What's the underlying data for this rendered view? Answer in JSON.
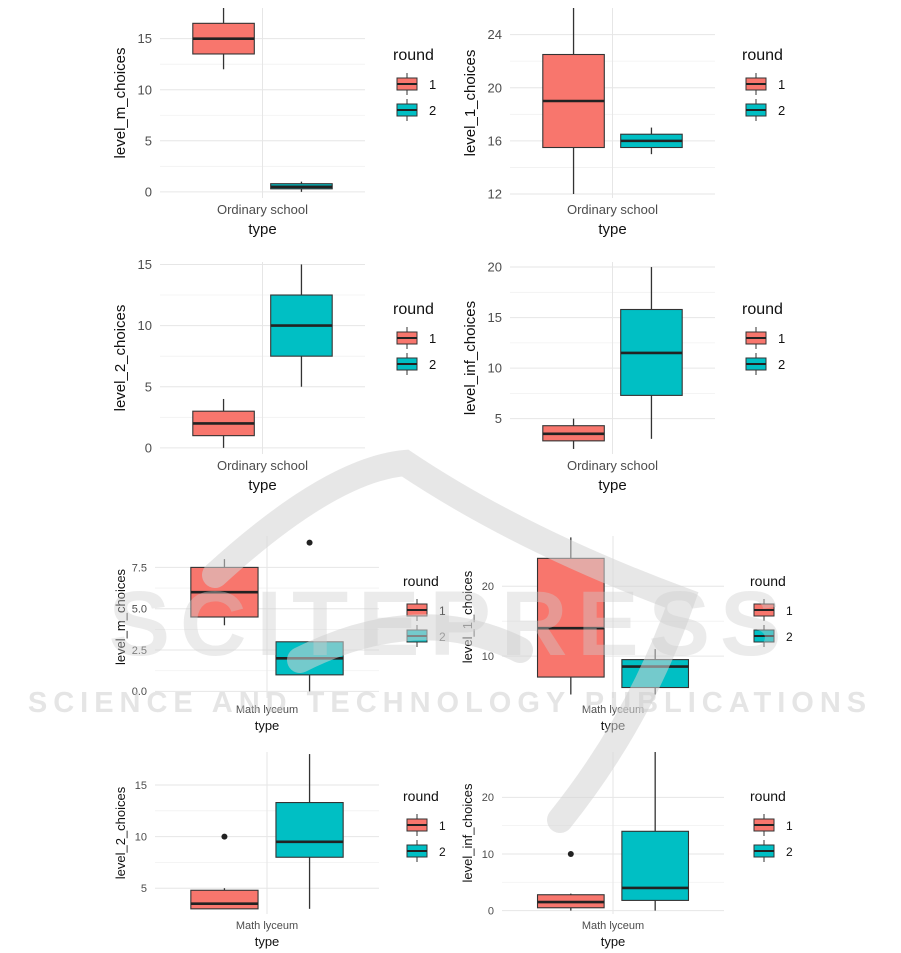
{
  "watermark": {
    "logo_text": "SCITEPRESS",
    "tagline": "SCIENCE AND TECHNOLOGY PUBLICATIONS"
  },
  "legend": {
    "title": "round",
    "entries": [
      "1",
      "2"
    ]
  },
  "colors": {
    "round_1": "#F8766D",
    "round_2": "#00BFC4",
    "median": "#222222",
    "grid": "#e6e6e6"
  },
  "chart_data": [
    {
      "type": "boxplot",
      "xlabel": "type",
      "ylabel": "level_m_choices",
      "categories": [
        "Ordinary school"
      ],
      "ylim": [
        -0.6,
        18
      ],
      "yticks": [
        0,
        5,
        10,
        15
      ],
      "ytick_labels": [
        "0",
        "5",
        "10",
        "15"
      ],
      "series": [
        {
          "name": "1",
          "q1": 13.5,
          "median": 15.0,
          "q3": 16.5,
          "whisker_low": 12.0,
          "whisker_high": 18.0,
          "outliers": []
        },
        {
          "name": "2",
          "q1": 0.3,
          "median": 0.5,
          "q3": 0.8,
          "whisker_low": 0.0,
          "whisker_high": 1.0,
          "outliers": []
        }
      ]
    },
    {
      "type": "boxplot",
      "xlabel": "type",
      "ylabel": "level_1_choices",
      "categories": [
        "Ordinary school"
      ],
      "ylim": [
        11.7,
        26.0
      ],
      "yticks": [
        12,
        16,
        20,
        24
      ],
      "ytick_labels": [
        "12",
        "16",
        "20",
        "24"
      ],
      "series": [
        {
          "name": "1",
          "q1": 15.5,
          "median": 19.0,
          "q3": 22.5,
          "whisker_low": 12.0,
          "whisker_high": 26.0,
          "outliers": []
        },
        {
          "name": "2",
          "q1": 15.5,
          "median": 16.0,
          "q3": 16.5,
          "whisker_low": 15.0,
          "whisker_high": 17.0,
          "outliers": []
        }
      ]
    },
    {
      "type": "boxplot",
      "xlabel": "type",
      "ylabel": "level_2_choices",
      "categories": [
        "Ordinary school"
      ],
      "ylim": [
        -0.5,
        15.2
      ],
      "yticks": [
        0,
        5,
        10,
        15
      ],
      "ytick_labels": [
        "0",
        "5",
        "10",
        "15"
      ],
      "series": [
        {
          "name": "1",
          "q1": 1.0,
          "median": 2.0,
          "q3": 3.0,
          "whisker_low": 0.0,
          "whisker_high": 4.0,
          "outliers": []
        },
        {
          "name": "2",
          "q1": 7.5,
          "median": 10.0,
          "q3": 12.5,
          "whisker_low": 5.0,
          "whisker_high": 15.0,
          "outliers": []
        }
      ]
    },
    {
      "type": "boxplot",
      "xlabel": "type",
      "ylabel": "level_inf_choices",
      "categories": [
        "Ordinary school"
      ],
      "ylim": [
        1.5,
        20.5
      ],
      "yticks": [
        5,
        10,
        15,
        20
      ],
      "ytick_labels": [
        "5",
        "10",
        "15",
        "20"
      ],
      "series": [
        {
          "name": "1",
          "q1": 2.8,
          "median": 3.5,
          "q3": 4.3,
          "whisker_low": 2.0,
          "whisker_high": 5.0,
          "outliers": []
        },
        {
          "name": "2",
          "q1": 7.3,
          "median": 11.5,
          "q3": 15.8,
          "whisker_low": 3.0,
          "whisker_high": 20.0,
          "outliers": []
        }
      ]
    },
    {
      "type": "boxplot",
      "xlabel": "type",
      "ylabel": "level_m_choices",
      "categories": [
        "Math lyceum"
      ],
      "ylim": [
        -0.4,
        9.4
      ],
      "yticks": [
        0,
        2.5,
        5,
        7.5
      ],
      "ytick_labels": [
        "0.0",
        "2.5",
        "5.0",
        "7.5"
      ],
      "series": [
        {
          "name": "1",
          "q1": 4.5,
          "median": 6.0,
          "q3": 7.5,
          "whisker_low": 4.0,
          "whisker_high": 8.0,
          "outliers": []
        },
        {
          "name": "2",
          "q1": 1.0,
          "median": 2.0,
          "q3": 3.0,
          "whisker_low": 0.0,
          "whisker_high": 3.0,
          "outliers": [
            9.0
          ]
        }
      ]
    },
    {
      "type": "boxplot",
      "xlabel": "type",
      "ylabel": "level_1_choices",
      "categories": [
        "Math lyceum"
      ],
      "ylim": [
        4.0,
        27.2
      ],
      "yticks": [
        10,
        20
      ],
      "ytick_labels": [
        "10",
        "20"
      ],
      "series": [
        {
          "name": "1",
          "q1": 7.0,
          "median": 14.0,
          "q3": 24.0,
          "whisker_low": 4.5,
          "whisker_high": 27.0,
          "outliers": []
        },
        {
          "name": "2",
          "q1": 5.5,
          "median": 8.5,
          "q3": 9.5,
          "whisker_low": 4.5,
          "whisker_high": 11.0,
          "outliers": []
        }
      ]
    },
    {
      "type": "boxplot",
      "xlabel": "type",
      "ylabel": "level_2_choices",
      "categories": [
        "Math lyceum"
      ],
      "ylim": [
        2.5,
        18.2
      ],
      "yticks": [
        5,
        10,
        15
      ],
      "ytick_labels": [
        "5",
        "10",
        "15"
      ],
      "series": [
        {
          "name": "1",
          "q1": 3.0,
          "median": 3.5,
          "q3": 4.8,
          "whisker_low": 3.0,
          "whisker_high": 5.0,
          "outliers": [
            10.0
          ]
        },
        {
          "name": "2",
          "q1": 8.0,
          "median": 9.5,
          "q3": 13.3,
          "whisker_low": 3.0,
          "whisker_high": 18.0,
          "outliers": []
        }
      ]
    },
    {
      "type": "boxplot",
      "xlabel": "type",
      "ylabel": "level_inf_choices",
      "categories": [
        "Math lyceum"
      ],
      "ylim": [
        -0.6,
        28.0
      ],
      "yticks": [
        0,
        10,
        20
      ],
      "ytick_labels": [
        "0",
        "10",
        "20"
      ],
      "series": [
        {
          "name": "1",
          "q1": 0.5,
          "median": 1.5,
          "q3": 2.8,
          "whisker_low": 0.0,
          "whisker_high": 3.0,
          "outliers": [
            10.0
          ]
        },
        {
          "name": "2",
          "q1": 1.8,
          "median": 4.0,
          "q3": 14.0,
          "whisker_low": 0.0,
          "whisker_high": 28.0,
          "outliers": []
        }
      ]
    }
  ]
}
